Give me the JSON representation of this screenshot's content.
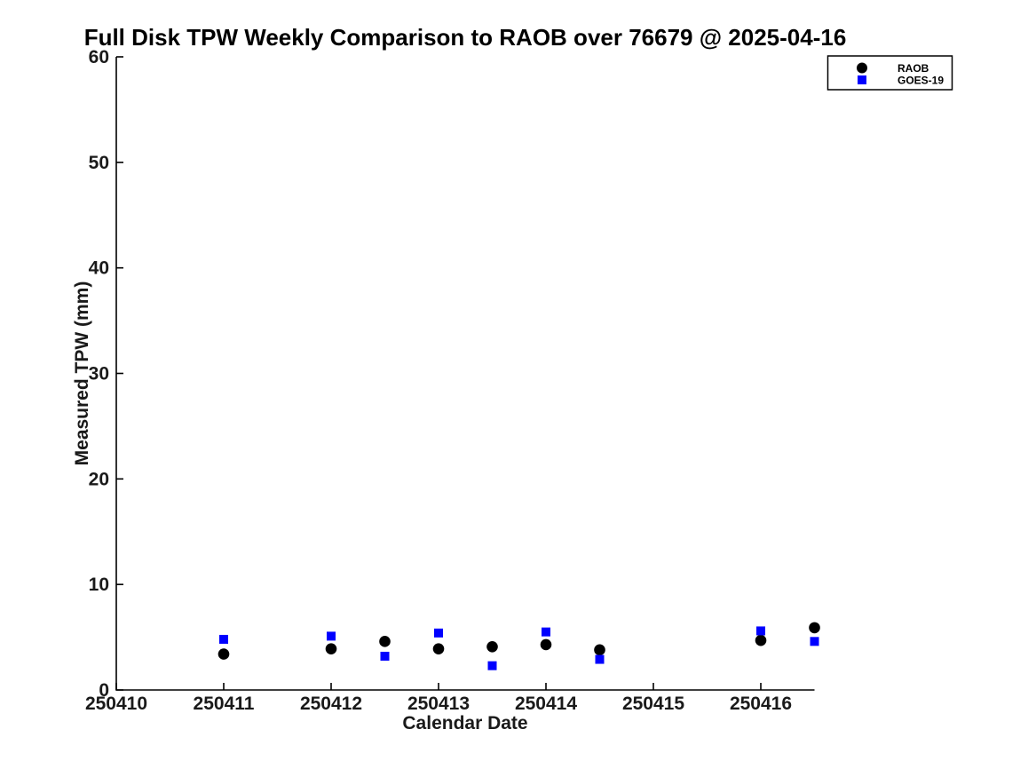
{
  "chart_data": {
    "type": "scatter",
    "title": "Full Disk TPW Weekly Comparison to RAOB over 76679 @ 2025-04-16",
    "xlabel": "Calendar Date",
    "ylabel": "Measured TPW (mm)",
    "xlim": [
      250410,
      250416.5
    ],
    "ylim": [
      0,
      60
    ],
    "x_ticks": [
      250410,
      250411,
      250412,
      250413,
      250414,
      250415,
      250416
    ],
    "x_tick_labels": [
      "250410",
      "250411",
      "250412",
      "250413",
      "250414",
      "250415",
      "250416"
    ],
    "y_ticks": [
      0,
      10,
      20,
      30,
      40,
      50,
      60
    ],
    "y_tick_labels": [
      "0",
      "10",
      "20",
      "30",
      "40",
      "50",
      "60"
    ],
    "grid": false,
    "legend_position": "top-right-outside-axes",
    "series": [
      {
        "name": "RAOB",
        "marker": "circle",
        "color": "#000000",
        "x": [
          250411.0,
          250412.0,
          250412.5,
          250413.0,
          250413.5,
          250414.0,
          250414.5,
          250416.0,
          250416.5
        ],
        "y": [
          3.4,
          3.9,
          4.6,
          3.9,
          4.1,
          4.3,
          3.8,
          4.7,
          5.9
        ]
      },
      {
        "name": "GOES-19",
        "marker": "square",
        "color": "#0000ff",
        "x": [
          250411.0,
          250412.0,
          250412.5,
          250413.0,
          250413.5,
          250414.0,
          250414.5,
          250416.0,
          250416.5
        ],
        "y": [
          4.8,
          5.1,
          3.2,
          5.4,
          2.3,
          5.5,
          2.9,
          5.6,
          4.6
        ]
      }
    ],
    "colors": {
      "raob": "#000000",
      "goes19": "#0000ff",
      "axis": "#000000",
      "background": "#ffffff"
    }
  }
}
